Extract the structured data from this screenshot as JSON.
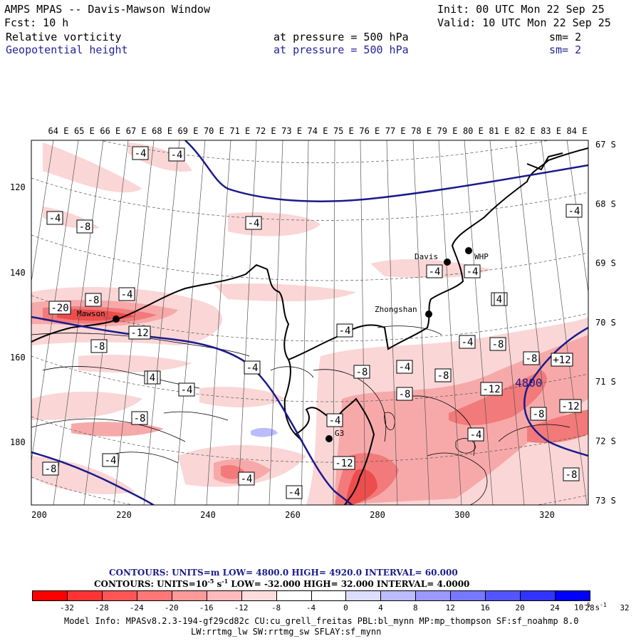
{
  "header": {
    "title": "AMPS MPAS -- Davis-Mawson Window",
    "init": "Init: 00 UTC Mon 22 Sep 25",
    "fcst": "Fcst:    10 h",
    "valid": "Valid: 10 UTC Mon 22 Sep 25",
    "field1": {
      "name": "Relative vorticity",
      "level": "at pressure =  500 hPa",
      "sm": "sm= 2"
    },
    "field2": {
      "name": "Geopotential height",
      "level": "at pressure =  500 hPa",
      "sm": "sm= 2"
    }
  },
  "axes": {
    "x_ticks": [
      "200",
      "220",
      "240",
      "260",
      "280",
      "300",
      "320"
    ],
    "y_ticks": [
      "120",
      "140",
      "160",
      "180"
    ],
    "lon_labels": [
      "64 E",
      "65 E",
      "66 E",
      "67 E",
      "68 E",
      "69 E",
      "70 E",
      "71 E",
      "72 E",
      "73 E",
      "74 E",
      "75 E",
      "76 E",
      "77 E",
      "78 E",
      "79 E",
      "80 E",
      "81 E",
      "82 E",
      "83 E",
      "84 E"
    ],
    "lat_labels": [
      "67 S",
      "68 S",
      "69 S",
      "70 S",
      "71 S",
      "72 S",
      "73 S"
    ]
  },
  "stations": [
    {
      "name": "Mawson"
    },
    {
      "name": "Davis"
    },
    {
      "name": "WHP"
    },
    {
      "name": "Zhongshan"
    },
    {
      "name": "G3"
    }
  ],
  "contour_labels": [
    "-20",
    "-8",
    "-4",
    "-12",
    "-8",
    "-4",
    "-4",
    "-8",
    "-4",
    "-4",
    "-4",
    "-4",
    "-4",
    "-4",
    "-4",
    "-4",
    "-4",
    "-8",
    "-4",
    "-8",
    "-4",
    "-8",
    "-4",
    "-8",
    "-4",
    "-12",
    "-8",
    "+12",
    "-8",
    "-12",
    "-8",
    "-8",
    "-12",
    "-4",
    "-8",
    "-4",
    "-4",
    "-4",
    "4",
    "4"
  ],
  "height_label": "4800",
  "contours_info": {
    "line1": "CONTOURS:  UNITS=m  LOW=  4800.0       HIGH=  4920.0       INTERVAL=   60.000",
    "line2_prefix": "CONTOURS:   UNITS=10",
    "line2_exp": "-5",
    "line2_unit": " s",
    "line2_exp2": "-1",
    "line2_rest": "  LOW=  -32.000        HIGH=  32.000        INTERVAL=   4.0000"
  },
  "colorbar": {
    "colors": [
      "#ff0000",
      "#ff3333",
      "#ff5555",
      "#ff7777",
      "#ff9999",
      "#ffbbbb",
      "#ffdddd",
      "#ffffff",
      "#ffffff",
      "#ddddff",
      "#bbbbff",
      "#9999ff",
      "#7777ff",
      "#5555ff",
      "#3333ff",
      "#0000ff"
    ],
    "labels": [
      "-32",
      "-28",
      "-24",
      "-20",
      "-16",
      "-12",
      "-8",
      "-4",
      "0",
      "4",
      "8",
      "12",
      "16",
      "20",
      "24",
      "28",
      "32"
    ],
    "unit_prefix": "10",
    "unit_exp": "-5",
    "unit_mid": " s",
    "unit_exp2": "-1"
  },
  "model_info": {
    "line1": "Model Info: MPASv8.2.3-194-gf29cd82c CU:cu_grell_freitas PBL:bl_mynn MP:mp_thompson SF:sf_noahmp 8.0",
    "line2": "LW:rrtmg_lw SW:rrtmg_sw SFLAY:sf_mynn"
  },
  "colors": {
    "height_contour": "#1a1a8c",
    "coast": "#000000",
    "grid": "#555555"
  }
}
